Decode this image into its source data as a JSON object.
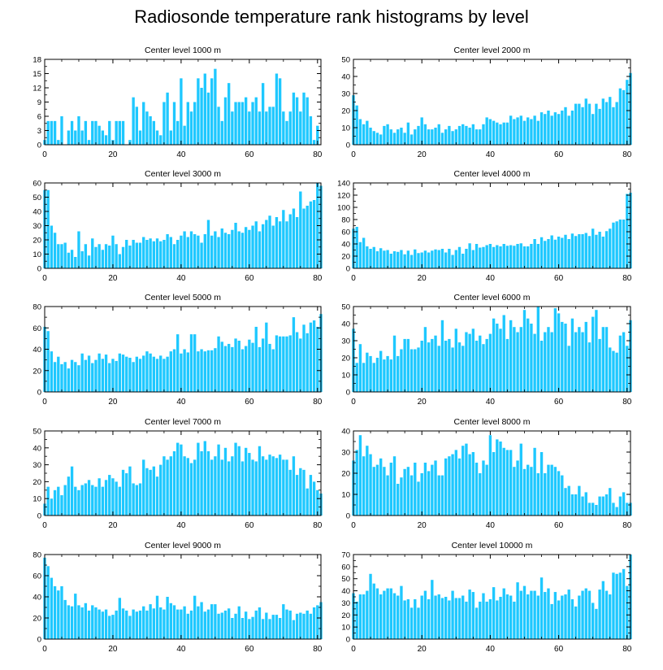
{
  "title": "Radiosonde temperature rank histograms by level",
  "bar_color": "#1ec8ff",
  "chart_data": [
    {
      "type": "bar",
      "title": "Center level 1000 m",
      "xlim": [
        0,
        81
      ],
      "ylim": [
        0,
        18
      ],
      "xticks": [
        0,
        20,
        40,
        60,
        80
      ],
      "yticks": [
        0,
        3,
        6,
        9,
        12,
        15,
        18
      ],
      "values": [
        1,
        5,
        5,
        5,
        1,
        6,
        0,
        3,
        5,
        3,
        6,
        3,
        5,
        1,
        5,
        5,
        4,
        3,
        2,
        5,
        1,
        5,
        5,
        5,
        0,
        1,
        10,
        8,
        3,
        9,
        7,
        6,
        5,
        3,
        2,
        9,
        11,
        3,
        9,
        5,
        14,
        4,
        9,
        7,
        9,
        14,
        12,
        15,
        11,
        14,
        16,
        8,
        5,
        10,
        13,
        7,
        9,
        9,
        9,
        10,
        7,
        9,
        10,
        7,
        13,
        7,
        8,
        8,
        15,
        14,
        7,
        5,
        7,
        11,
        10,
        7,
        11,
        10,
        6,
        1,
        4,
        0
      ]
    },
    {
      "type": "bar",
      "title": "Center level 2000 m",
      "xlim": [
        0,
        81
      ],
      "ylim": [
        0,
        50
      ],
      "xticks": [
        0,
        20,
        40,
        60,
        80
      ],
      "yticks": [
        0,
        10,
        20,
        30,
        40,
        50
      ],
      "values": [
        29,
        23,
        15,
        12,
        14,
        10,
        8,
        7,
        6,
        11,
        12,
        9,
        7,
        9,
        10,
        7,
        13,
        6,
        9,
        11,
        16,
        12,
        9,
        9,
        10,
        12,
        7,
        9,
        11,
        8,
        9,
        11,
        12,
        11,
        10,
        12,
        9,
        9,
        12,
        16,
        15,
        14,
        13,
        12,
        13,
        13,
        17,
        15,
        16,
        17,
        14,
        16,
        15,
        17,
        14,
        19,
        18,
        20,
        17,
        19,
        18,
        20,
        22,
        17,
        20,
        24,
        24,
        22,
        27,
        24,
        18,
        24,
        21,
        27,
        25,
        28,
        22,
        25,
        33,
        32,
        38,
        42
      ]
    },
    {
      "type": "bar",
      "title": "Center level 3000 m",
      "xlim": [
        0,
        81
      ],
      "ylim": [
        0,
        60
      ],
      "xticks": [
        0,
        20,
        40,
        60,
        80
      ],
      "yticks": [
        0,
        10,
        20,
        30,
        40,
        50,
        60
      ],
      "values": [
        55,
        55,
        30,
        25,
        17,
        17,
        18,
        11,
        13,
        8,
        26,
        12,
        17,
        9,
        21,
        15,
        17,
        13,
        17,
        16,
        23,
        17,
        10,
        15,
        20,
        16,
        20,
        18,
        18,
        22,
        20,
        21,
        19,
        21,
        19,
        20,
        24,
        22,
        17,
        20,
        23,
        26,
        22,
        26,
        24,
        23,
        18,
        24,
        34,
        23,
        26,
        22,
        28,
        25,
        24,
        27,
        32,
        26,
        25,
        29,
        27,
        30,
        33,
        26,
        31,
        34,
        37,
        30,
        36,
        33,
        41,
        33,
        38,
        42,
        36,
        54,
        42,
        44,
        47,
        48,
        60,
        58
      ]
    },
    {
      "type": "bar",
      "title": "Center level 4000 m",
      "xlim": [
        0,
        81
      ],
      "ylim": [
        0,
        140
      ],
      "xticks": [
        0,
        20,
        40,
        60,
        80
      ],
      "yticks": [
        0,
        20,
        40,
        60,
        80,
        100,
        120,
        140
      ],
      "values": [
        65,
        68,
        43,
        50,
        36,
        32,
        35,
        28,
        33,
        29,
        30,
        24,
        28,
        27,
        30,
        23,
        29,
        22,
        31,
        25,
        26,
        29,
        26,
        29,
        31,
        30,
        32,
        26,
        32,
        22,
        30,
        35,
        24,
        32,
        41,
        30,
        40,
        34,
        35,
        38,
        40,
        35,
        38,
        36,
        40,
        37,
        38,
        37,
        40,
        41,
        36,
        36,
        40,
        48,
        40,
        51,
        45,
        48,
        54,
        47,
        52,
        50,
        55,
        48,
        57,
        53,
        56,
        56,
        58,
        53,
        65,
        55,
        60,
        52,
        61,
        65,
        75,
        77,
        80,
        80,
        122,
        124
      ]
    },
    {
      "type": "bar",
      "title": "Center level 5000 m",
      "xlim": [
        0,
        81
      ],
      "ylim": [
        0,
        80
      ],
      "xticks": [
        0,
        20,
        40,
        60,
        80
      ],
      "yticks": [
        0,
        20,
        40,
        60,
        80
      ],
      "values": [
        61,
        57,
        38,
        28,
        33,
        26,
        28,
        22,
        30,
        28,
        25,
        36,
        30,
        34,
        27,
        30,
        36,
        31,
        35,
        27,
        31,
        29,
        36,
        35,
        33,
        32,
        28,
        33,
        31,
        34,
        38,
        36,
        33,
        31,
        34,
        31,
        33,
        38,
        40,
        54,
        36,
        40,
        37,
        54,
        54,
        38,
        40,
        38,
        39,
        39,
        41,
        52,
        47,
        43,
        45,
        42,
        50,
        48,
        40,
        43,
        49,
        46,
        61,
        42,
        50,
        65,
        45,
        40,
        53,
        52,
        52,
        52,
        53,
        70,
        56,
        50,
        63,
        55,
        65,
        67,
        61,
        73
      ]
    },
    {
      "type": "bar",
      "title": "Center level 6000 m",
      "xlim": [
        0,
        81
      ],
      "ylim": [
        0,
        50
      ],
      "xticks": [
        0,
        20,
        40,
        60,
        80
      ],
      "yticks": [
        0,
        10,
        20,
        30,
        40,
        50
      ],
      "values": [
        37,
        17,
        28,
        17,
        23,
        21,
        17,
        20,
        24,
        19,
        21,
        19,
        33,
        21,
        25,
        31,
        31,
        25,
        25,
        26,
        30,
        38,
        29,
        31,
        33,
        27,
        42,
        30,
        31,
        26,
        37,
        29,
        27,
        35,
        34,
        37,
        30,
        33,
        28,
        31,
        34,
        43,
        40,
        37,
        45,
        31,
        42,
        38,
        35,
        38,
        48,
        43,
        40,
        34,
        50,
        30,
        35,
        38,
        35,
        49,
        46,
        41,
        40,
        27,
        43,
        35,
        38,
        35,
        41,
        29,
        44,
        48,
        31,
        38,
        38,
        26,
        24,
        23,
        33,
        35,
        27,
        42
      ]
    },
    {
      "type": "bar",
      "title": "Center level 7000 m",
      "xlim": [
        0,
        81
      ],
      "ylim": [
        0,
        50
      ],
      "xticks": [
        0,
        20,
        40,
        60,
        80
      ],
      "yticks": [
        0,
        10,
        20,
        30,
        40,
        50
      ],
      "values": [
        7,
        17,
        10,
        15,
        17,
        12,
        18,
        23,
        29,
        17,
        15,
        18,
        19,
        21,
        18,
        17,
        22,
        17,
        21,
        24,
        22,
        20,
        17,
        27,
        25,
        29,
        19,
        18,
        19,
        33,
        28,
        27,
        29,
        23,
        30,
        35,
        33,
        35,
        38,
        43,
        42,
        35,
        34,
        31,
        33,
        43,
        38,
        44,
        38,
        33,
        35,
        42,
        33,
        40,
        32,
        35,
        43,
        41,
        32,
        40,
        37,
        33,
        32,
        41,
        35,
        33,
        36,
        35,
        34,
        36,
        33,
        33,
        27,
        35,
        24,
        28,
        27,
        16,
        24,
        20,
        15,
        13
      ]
    },
    {
      "type": "bar",
      "title": "Center level 8000 m",
      "xlim": [
        0,
        81
      ],
      "ylim": [
        0,
        40
      ],
      "xticks": [
        0,
        20,
        40,
        60,
        80
      ],
      "yticks": [
        0,
        10,
        20,
        30,
        40
      ],
      "values": [
        26,
        31,
        38,
        28,
        33,
        29,
        23,
        24,
        27,
        23,
        19,
        25,
        28,
        15,
        18,
        22,
        23,
        19,
        25,
        16,
        20,
        25,
        21,
        24,
        26,
        19,
        19,
        27,
        28,
        29,
        31,
        27,
        33,
        34,
        29,
        30,
        25,
        20,
        26,
        24,
        38,
        30,
        36,
        35,
        32,
        31,
        31,
        23,
        26,
        34,
        22,
        24,
        23,
        32,
        20,
        30,
        20,
        24,
        24,
        23,
        21,
        19,
        13,
        14,
        10,
        10,
        14,
        9,
        11,
        6,
        6,
        5,
        9,
        9,
        10,
        13,
        6,
        4,
        9,
        11,
        6,
        6
      ]
    },
    {
      "type": "bar",
      "title": "Center level 9000 m",
      "xlim": [
        0,
        81
      ],
      "ylim": [
        0,
        80
      ],
      "xticks": [
        0,
        20,
        40,
        60,
        80
      ],
      "yticks": [
        0,
        20,
        40,
        60,
        80
      ],
      "values": [
        77,
        69,
        58,
        50,
        46,
        50,
        37,
        32,
        31,
        43,
        32,
        30,
        34,
        27,
        32,
        30,
        28,
        26,
        28,
        22,
        23,
        27,
        39,
        29,
        27,
        22,
        28,
        26,
        27,
        31,
        27,
        33,
        29,
        41,
        30,
        28,
        40,
        34,
        32,
        28,
        28,
        31,
        24,
        27,
        41,
        31,
        35,
        26,
        28,
        33,
        33,
        24,
        25,
        27,
        29,
        20,
        24,
        31,
        20,
        26,
        19,
        21,
        27,
        30,
        19,
        25,
        19,
        23,
        23,
        20,
        33,
        28,
        27,
        18,
        24,
        25,
        24,
        27,
        24,
        30,
        32,
        35
      ]
    },
    {
      "type": "bar",
      "title": "Center level 10000 m",
      "xlim": [
        0,
        81
      ],
      "ylim": [
        0,
        70
      ],
      "xticks": [
        0,
        20,
        40,
        60,
        80
      ],
      "yticks": [
        0,
        10,
        20,
        30,
        40,
        50,
        60,
        70
      ],
      "values": [
        38,
        31,
        37,
        37,
        40,
        54,
        46,
        42,
        37,
        40,
        42,
        42,
        38,
        36,
        44,
        32,
        33,
        26,
        33,
        26,
        36,
        40,
        33,
        49,
        36,
        37,
        34,
        35,
        32,
        40,
        34,
        34,
        36,
        31,
        41,
        39,
        26,
        31,
        38,
        31,
        33,
        43,
        32,
        35,
        42,
        37,
        36,
        31,
        47,
        40,
        44,
        37,
        40,
        40,
        36,
        51,
        39,
        42,
        29,
        39,
        32,
        36,
        37,
        41,
        33,
        27,
        36,
        40,
        42,
        40,
        30,
        25,
        41,
        48,
        40,
        37,
        55,
        54,
        55,
        58,
        44,
        70
      ]
    }
  ]
}
